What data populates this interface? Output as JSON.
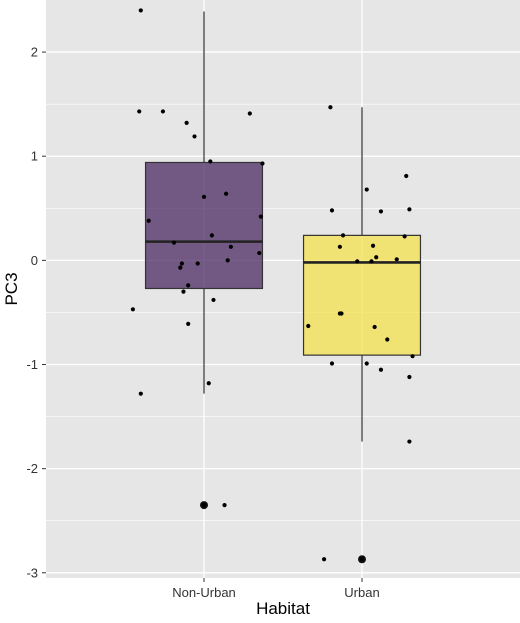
{
  "chart_data": {
    "type": "box",
    "xlabel": "Habitat",
    "ylabel": "PC3",
    "categories": [
      "Non-Urban",
      "Urban"
    ],
    "ylim": [
      -3.05,
      2.5
    ],
    "yticks": [
      -3,
      -2,
      -1,
      0,
      1,
      2
    ],
    "ytick_labels": [
      "-3",
      "-2",
      "-1",
      "0",
      "1",
      "2"
    ],
    "grid": true,
    "legend": "none",
    "colors": {
      "panel_background": "#e6e6e6",
      "grid": "#ffffff",
      "series": [
        "#4b2a62",
        "#f4e04d"
      ]
    },
    "boxes": [
      {
        "category": "Non-Urban",
        "q1": -0.27,
        "median": 0.18,
        "q3": 0.94,
        "whisker_low": -1.28,
        "whisker_high": 2.39,
        "outliers": [
          -2.35
        ]
      },
      {
        "category": "Urban",
        "q1": -0.91,
        "median": -0.02,
        "q3": 0.24,
        "whisker_low": -1.74,
        "whisker_high": 1.47,
        "outliers": [
          -2.87
        ]
      }
    ],
    "points": [
      {
        "category": "Non-Urban",
        "data": [
          [
            -0.4,
            2.4
          ],
          [
            -0.41,
            1.43
          ],
          [
            -0.26,
            1.43
          ],
          [
            -0.11,
            1.32
          ],
          [
            -0.06,
            1.19
          ],
          [
            0.29,
            1.41
          ],
          [
            0.04,
            0.95
          ],
          [
            0.37,
            0.93
          ],
          [
            -0.35,
            0.38
          ],
          [
            -0.19,
            0.17
          ],
          [
            0.0,
            0.61
          ],
          [
            0.14,
            0.64
          ],
          [
            -0.04,
            -0.03
          ],
          [
            -0.14,
            -0.03
          ],
          [
            0.05,
            0.24
          ],
          [
            0.17,
            0.13
          ],
          [
            0.36,
            0.42
          ],
          [
            0.35,
            0.07
          ],
          [
            0.15,
            0.0
          ],
          [
            -0.15,
            -0.07
          ],
          [
            -0.13,
            -0.3
          ],
          [
            -0.1,
            -0.24
          ],
          [
            -0.45,
            -0.47
          ],
          [
            0.06,
            -0.38
          ],
          [
            -0.1,
            -0.61
          ],
          [
            -0.4,
            -1.28
          ],
          [
            0.03,
            -1.18
          ],
          [
            0.13,
            -2.35
          ],
          [
            0.0,
            -2.35
          ]
        ]
      },
      {
        "category": "Urban",
        "data": [
          [
            -0.2,
            1.47
          ],
          [
            0.03,
            0.68
          ],
          [
            0.28,
            0.81
          ],
          [
            0.12,
            0.47
          ],
          [
            -0.19,
            0.48
          ],
          [
            0.3,
            0.49
          ],
          [
            -0.12,
            0.24
          ],
          [
            0.27,
            0.23
          ],
          [
            0.07,
            0.14
          ],
          [
            -0.14,
            0.13
          ],
          [
            -0.03,
            -0.01
          ],
          [
            0.06,
            -0.01
          ],
          [
            0.09,
            0.03
          ],
          [
            0.22,
            0.01
          ],
          [
            -0.34,
            -0.63
          ],
          [
            -0.14,
            -0.51
          ],
          [
            -0.13,
            -0.51
          ],
          [
            0.08,
            -0.64
          ],
          [
            0.16,
            -0.76
          ],
          [
            0.32,
            -0.92
          ],
          [
            -0.19,
            -0.99
          ],
          [
            0.03,
            -0.99
          ],
          [
            0.12,
            -1.05
          ],
          [
            0.3,
            -1.12
          ],
          [
            0.3,
            -1.74
          ],
          [
            -0.24,
            -2.87
          ],
          [
            0.0,
            -2.87
          ]
        ]
      }
    ]
  }
}
